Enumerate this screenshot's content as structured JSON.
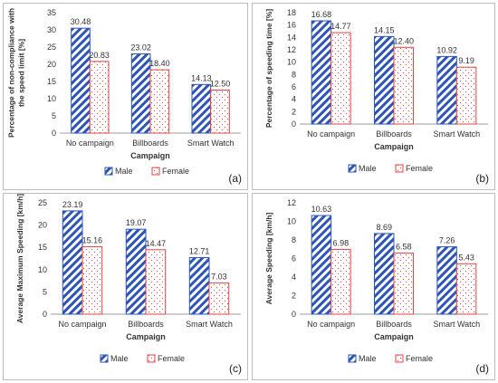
{
  "chart_data": [
    {
      "type": "bar",
      "panel_label": "(a)",
      "categories": [
        "No campaign",
        "Billboards",
        "Smart Watch"
      ],
      "series": [
        {
          "name": "Male",
          "values": [
            30.48,
            23.02,
            14.13
          ]
        },
        {
          "name": "Female",
          "values": [
            20.83,
            18.4,
            12.5
          ]
        }
      ],
      "data_labels": [
        [
          "30.48",
          "23.02",
          "14.13"
        ],
        [
          "20.83",
          "18.40",
          "12.50"
        ]
      ],
      "xlabel": "Campaign",
      "ylabel": "Percentage of non-compliance with the speed limit [%]",
      "ylabel_lines": [
        "Percentage of non-compliance with",
        "the speed limit [%]"
      ],
      "ylim": [
        0,
        35
      ],
      "yticks": [
        0,
        5,
        10,
        15,
        20,
        25,
        30,
        35
      ],
      "legend_position": "bottom"
    },
    {
      "type": "bar",
      "panel_label": "(b)",
      "categories": [
        "No campaign",
        "Billboards",
        "Smart Watch"
      ],
      "series": [
        {
          "name": "Male",
          "values": [
            16.68,
            14.15,
            10.92
          ]
        },
        {
          "name": "Female",
          "values": [
            14.77,
            12.4,
            9.19
          ]
        }
      ],
      "data_labels": [
        [
          "16.68",
          "14.15",
          "10.92"
        ],
        [
          "14.77",
          "12.40",
          "9.19"
        ]
      ],
      "xlabel": "Campaign",
      "ylabel": "Percentage of speeding time [%]",
      "ylabel_lines": [
        "Percentage of speeding time [%]"
      ],
      "ylim": [
        0,
        18
      ],
      "yticks": [
        0,
        2,
        4,
        6,
        8,
        10,
        12,
        14,
        16,
        18
      ],
      "legend_position": "bottom"
    },
    {
      "type": "bar",
      "panel_label": "(c)",
      "categories": [
        "No campaign",
        "Billboards",
        "Smart Watch"
      ],
      "series": [
        {
          "name": "Male",
          "values": [
            23.19,
            19.07,
            12.71
          ]
        },
        {
          "name": "Female",
          "values": [
            15.16,
            14.47,
            7.03
          ]
        }
      ],
      "data_labels": [
        [
          "23.19",
          "19.07",
          "12.71"
        ],
        [
          "15.16",
          "14.47",
          "7.03"
        ]
      ],
      "xlabel": "Campaign",
      "ylabel": "Average Maximum Speeding [km/h]",
      "ylabel_lines": [
        "Average Maximum Speeding  [km/h]"
      ],
      "ylim": [
        0,
        25
      ],
      "yticks": [
        0,
        5,
        10,
        15,
        20,
        25
      ],
      "legend_position": "bottom"
    },
    {
      "type": "bar",
      "panel_label": "(d)",
      "categories": [
        "No campaign",
        "Billboards",
        "Smart Watch"
      ],
      "series": [
        {
          "name": "Male",
          "values": [
            10.63,
            8.69,
            7.26
          ]
        },
        {
          "name": "Female",
          "values": [
            6.98,
            6.58,
            5.43
          ]
        }
      ],
      "data_labels": [
        [
          "10.63",
          "8.69",
          "7.26"
        ],
        [
          "6.98",
          "6.58",
          "5.43"
        ]
      ],
      "xlabel": "Campaign",
      "ylabel": "Average Speeding [km/h]",
      "ylabel_lines": [
        "Average  Speeding  [km/h]"
      ],
      "ylim": [
        0,
        12
      ],
      "yticks": [
        0,
        2,
        4,
        6,
        8,
        10,
        12
      ],
      "legend_position": "bottom"
    }
  ],
  "colors": {
    "male": "#2e54b5",
    "female": "#e04545",
    "axis": "#9e9e9e",
    "text": "#333333"
  }
}
